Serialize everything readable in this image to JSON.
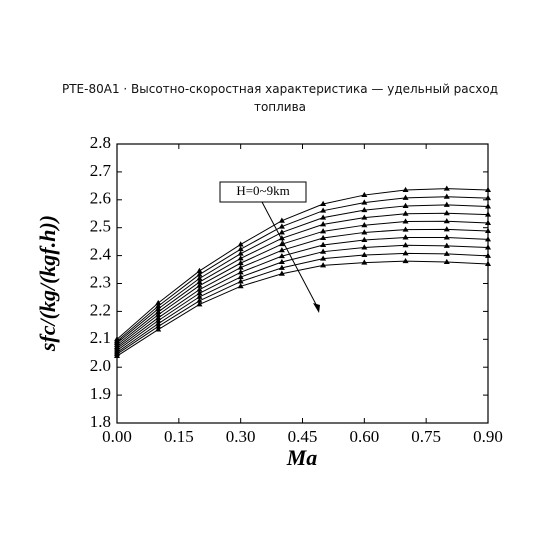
{
  "chart_data": {
    "type": "line",
    "title": "PTE-80A1 · Высотно-скоростная характеристика — удельный расход топлива",
    "xlabel": "Ma",
    "ylabel": "sfc/(kg/(kgf.h))",
    "annotation": "H=0~9km",
    "x": [
      0,
      0.1,
      0.2,
      0.3,
      0.4,
      0.5,
      0.6,
      0.7,
      0.8,
      0.9
    ],
    "series": [
      {
        "color": "#000000",
        "values": [
          2.1,
          2.23,
          2.345,
          2.44,
          2.525,
          2.585,
          2.617,
          2.635,
          2.64,
          2.635
        ]
      },
      {
        "color": "#000000",
        "values": [
          2.093,
          2.219,
          2.332,
          2.423,
          2.504,
          2.561,
          2.59,
          2.607,
          2.611,
          2.606
        ]
      },
      {
        "color": "#000000",
        "values": [
          2.087,
          2.209,
          2.318,
          2.407,
          2.483,
          2.536,
          2.563,
          2.578,
          2.582,
          2.576
        ]
      },
      {
        "color": "#000000",
        "values": [
          2.08,
          2.198,
          2.305,
          2.39,
          2.462,
          2.512,
          2.536,
          2.55,
          2.552,
          2.547
        ]
      },
      {
        "color": "#000000",
        "values": [
          2.073,
          2.188,
          2.292,
          2.373,
          2.441,
          2.487,
          2.509,
          2.522,
          2.523,
          2.517
        ]
      },
      {
        "color": "#000000",
        "values": [
          2.067,
          2.177,
          2.278,
          2.357,
          2.419,
          2.463,
          2.483,
          2.493,
          2.494,
          2.488
        ]
      },
      {
        "color": "#000000",
        "values": [
          2.06,
          2.167,
          2.265,
          2.34,
          2.398,
          2.438,
          2.456,
          2.465,
          2.465,
          2.458
        ]
      },
      {
        "color": "#000000",
        "values": [
          2.053,
          2.156,
          2.252,
          2.323,
          2.377,
          2.414,
          2.429,
          2.437,
          2.435,
          2.429
        ]
      },
      {
        "color": "#000000",
        "values": [
          2.047,
          2.146,
          2.238,
          2.307,
          2.356,
          2.389,
          2.402,
          2.408,
          2.406,
          2.399
        ]
      },
      {
        "color": "#000000",
        "values": [
          2.04,
          2.135,
          2.225,
          2.29,
          2.335,
          2.365,
          2.375,
          2.38,
          2.377,
          2.37
        ]
      }
    ],
    "xlim": [
      0,
      0.9
    ],
    "xticks": [
      {
        "value": 0,
        "label": "0.00"
      },
      0.15,
      {
        "value": 0.3,
        "label": "0.30"
      },
      0.45,
      {
        "value": 0.6,
        "label": "0.60"
      },
      0.75,
      {
        "value": 0.9,
        "label": "0.90"
      }
    ],
    "ylim": [
      1.8,
      2.8
    ],
    "yticks": [
      1.8,
      1.9,
      {
        "value": 2,
        "label": "2.0"
      },
      2.1,
      2.2,
      2.3,
      2.4,
      2.5,
      2.6,
      2.7,
      2.8
    ],
    "marker": "triangle"
  }
}
